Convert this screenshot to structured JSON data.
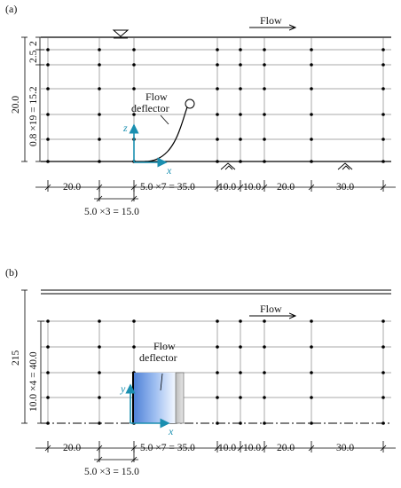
{
  "panel_a": {
    "panel_label": "(a)",
    "flow_label": "Flow",
    "deflector_label_line1": "Flow",
    "deflector_label_line2": "deflector",
    "axis_z": "z",
    "axis_x": "x",
    "vertical_total": "20.0",
    "vertical_dims": [
      "2",
      "2.5",
      "0.8 ×19 = 15.2"
    ],
    "horizontal_dims": [
      "20.0",
      "5.0 ×7 = 35.0",
      "10.0",
      "10.0",
      "20.0",
      "30.0"
    ],
    "sub_dim": "5.0 ×3 = 15.0"
  },
  "panel_b": {
    "panel_label": "(b)",
    "flow_label": "Flow",
    "deflector_label_line1": "Flow",
    "deflector_label_line2": "deflector",
    "axis_y": "y",
    "axis_x": "x",
    "vertical_total": "215",
    "vertical_dim": "10.0 ×4 = 40.0",
    "horizontal_dims": [
      "20.0",
      "5.0 ×7 = 35.0",
      "10.0",
      "10.0",
      "20.0",
      "30.0"
    ],
    "sub_dim": "5.0 ×3 = 15.0"
  },
  "colors": {
    "axis": "#1a8fb0",
    "deflector_fill": "#8fb2ea",
    "line": "#000000",
    "grid": "#333333"
  }
}
